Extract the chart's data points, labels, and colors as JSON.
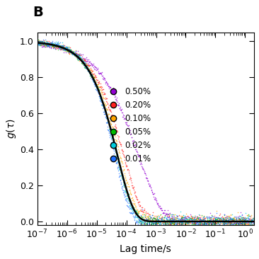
{
  "title": "B",
  "xlabel": "Lag time/s",
  "ylabel": "g",
  "xlim_log": [
    -7,
    0.3
  ],
  "ylim": [
    -0.02,
    1.05
  ],
  "yticks": [
    0.0,
    0.2,
    0.4,
    0.6,
    0.8,
    1.0
  ],
  "series": [
    {
      "label": "0.50%",
      "color": "#9400D3",
      "tau_c": 0.00025,
      "beta": 0.55
    },
    {
      "label": "0.20%",
      "color": "#FF2020",
      "tau_c": 8e-05,
      "beta": 0.7
    },
    {
      "label": "0.10%",
      "color": "#FFA500",
      "tau_c": 6e-05,
      "beta": 0.75
    },
    {
      "label": "0.05%",
      "color": "#00BB00",
      "tau_c": 5e-05,
      "beta": 0.78
    },
    {
      "label": "0.02%",
      "color": "#00CCDD",
      "tau_c": 4.5e-05,
      "beta": 0.82
    },
    {
      "label": "0.01%",
      "color": "#1E6FFF",
      "tau_c": 4e-05,
      "beta": 0.85
    }
  ],
  "fit_color": "#000000",
  "fit_tau_c": 5e-05,
  "fit_beta": 0.78,
  "background_color": "#ffffff",
  "panel_label": "B",
  "scatter_alpha": 0.7,
  "scatter_size": 1.2,
  "n_points": 600
}
